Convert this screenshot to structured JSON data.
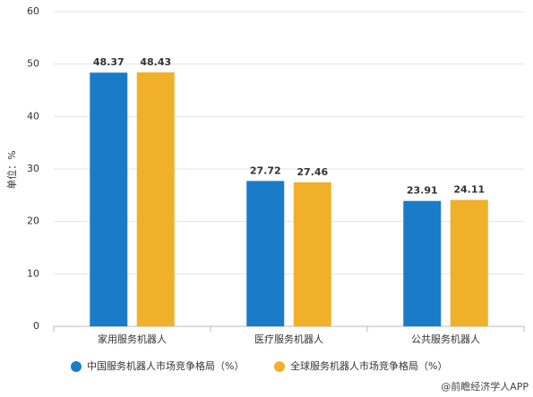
{
  "chart_data": {
    "type": "bar",
    "y_label": "单位：%",
    "categories": [
      "家用服务机器人",
      "医疗服务机器人",
      "公共服务机器人"
    ],
    "series": [
      {
        "name": "中国服务机器人市场竞争格局（%）",
        "color": "#1a7cc9",
        "values": [
          48.37,
          27.72,
          23.91
        ]
      },
      {
        "name": "全球服务机器人市场竞争格局（%）",
        "color": "#f0b02a",
        "values": [
          48.43,
          27.46,
          24.11
        ]
      }
    ],
    "ylim": [
      0,
      60
    ],
    "yticks": [
      0,
      10,
      20,
      30,
      40,
      50,
      60
    ],
    "grid": true,
    "legend": "bottom",
    "credit": "@前瞻经济学人APP"
  }
}
